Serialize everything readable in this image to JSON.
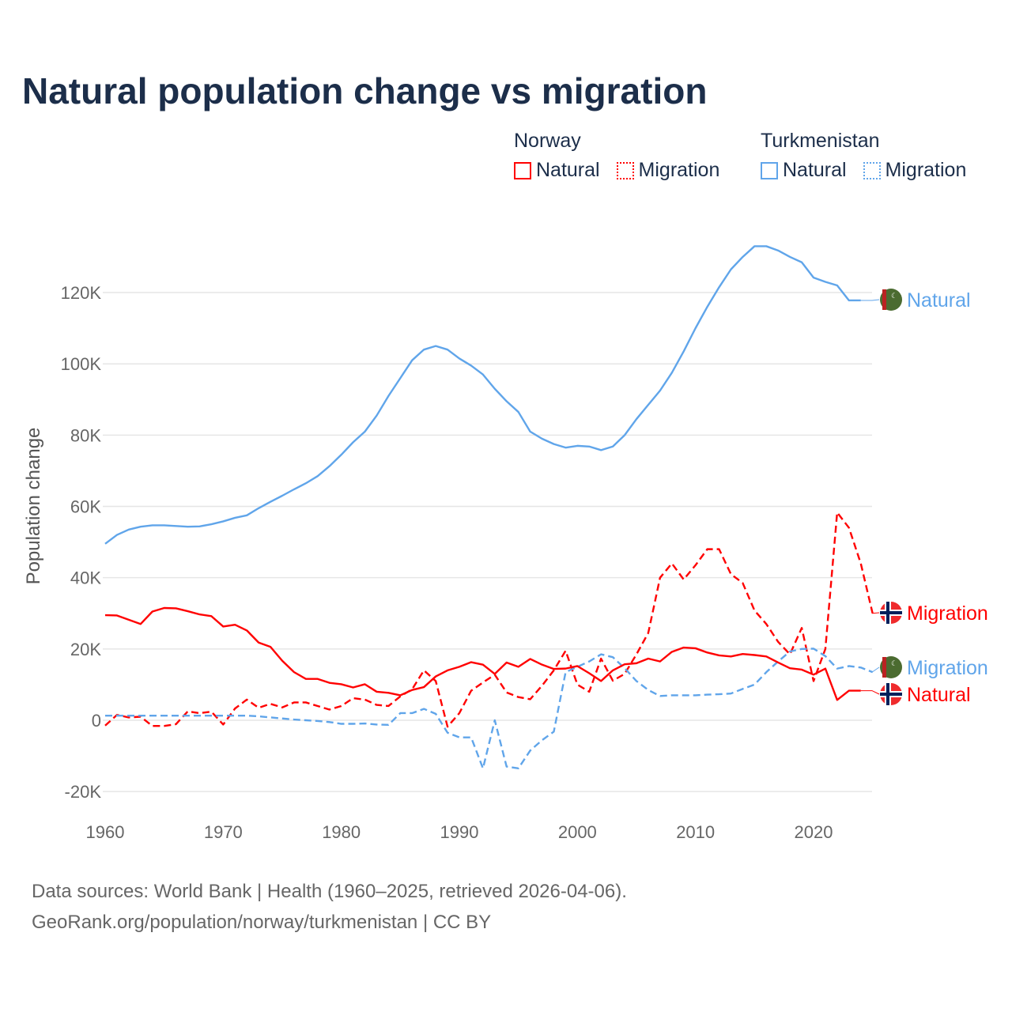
{
  "title": "Natural population change vs migration",
  "legend": {
    "groups": [
      {
        "name": "Norway",
        "items": [
          {
            "label": "Natural",
            "style": "solid"
          },
          {
            "label": "Migration",
            "style": "dashed"
          }
        ],
        "color": "#ff0000"
      },
      {
        "name": "Turkmenistan",
        "items": [
          {
            "label": "Natural",
            "style": "solid"
          },
          {
            "label": "Migration",
            "style": "dashed"
          }
        ],
        "color": "#60a5ea"
      }
    ]
  },
  "source": {
    "line1": "Data sources: World Bank | Health (1960–2025, retrieved 2026-04-06).",
    "line2": "GeoRank.org/population/norway/turkmenistan | CC BY"
  },
  "chart_data": {
    "type": "line",
    "title": "Natural population change vs migration",
    "xlabel": "",
    "ylabel": "Population change",
    "xlim": [
      1960,
      2025
    ],
    "ylim": [
      -20000,
      135000
    ],
    "xticks": [
      1960,
      1970,
      1980,
      1990,
      2000,
      2010,
      2020
    ],
    "xtick_labels": [
      "1960",
      "1970",
      "1980",
      "1990",
      "2000",
      "2010",
      "2020"
    ],
    "yticks": [
      -20000,
      0,
      20000,
      40000,
      60000,
      80000,
      100000,
      120000
    ],
    "ytick_labels": [
      "-20K",
      "0",
      "20K",
      "40K",
      "60K",
      "80K",
      "100K",
      "120K"
    ],
    "grid": true,
    "series": [
      {
        "name": "Turkmenistan Natural",
        "label": "Natural",
        "flag": "turkmenistan",
        "color": "#60a5ea",
        "dash": false,
        "start": 1960,
        "values": [
          49.5,
          52,
          53.5,
          54.3,
          54.7,
          54.7,
          54.5,
          54.3,
          54.4,
          55,
          55.8,
          56.8,
          57.5,
          59.5,
          61.3,
          63,
          64.8,
          66.5,
          68.5,
          71.3,
          74.5,
          78,
          81,
          85.5,
          91,
          96,
          101,
          104,
          105,
          104,
          101.5,
          99.5,
          97,
          93,
          89.5,
          86.5,
          81,
          79,
          77.5,
          76.5,
          77,
          76.8,
          75.8,
          76.8,
          80,
          84.5,
          88.5,
          92.5,
          97.5,
          103.5,
          110,
          116,
          121.5,
          126.5,
          130,
          133,
          133,
          131.8,
          130,
          128.5,
          124.2,
          123,
          122,
          117.8,
          117.8
        ]
      },
      {
        "name": "Norway Migration",
        "label": "Migration",
        "flag": "norway",
        "color": "#ff0000",
        "dash": true,
        "start": 1960,
        "values": [
          -1.5,
          1.5,
          0.8,
          1,
          -1.6,
          -1.6,
          -1.1,
          2.5,
          2,
          2.4,
          -1.2,
          3.3,
          5.8,
          3.5,
          4.6,
          3.6,
          5,
          5,
          4,
          3,
          4,
          6.2,
          5.8,
          4.3,
          4,
          6.7,
          8.7,
          14,
          11,
          -1.8,
          2,
          8.3,
          10.6,
          12.8,
          7.8,
          6.5,
          5.9,
          9.7,
          14,
          19.5,
          10,
          8,
          17.3,
          11.1,
          13,
          18.5,
          24.5,
          40,
          44,
          39.5,
          43.5,
          48,
          48,
          41,
          38.5,
          30.8,
          27,
          22,
          18.5,
          25.9,
          11,
          20,
          58.3,
          54,
          44,
          30
        ]
      },
      {
        "name": "Turkmenistan Migration",
        "label": "Migration",
        "flag": "turkmenistan",
        "color": "#60a5ea",
        "dash": true,
        "start": 1960,
        "values": [
          1.3,
          1.3,
          1.3,
          1.3,
          1.3,
          1.3,
          1.3,
          1.3,
          1.3,
          1.3,
          1.3,
          1.3,
          1.3,
          1.1,
          0.8,
          0.5,
          0.2,
          0,
          -0.2,
          -0.5,
          -1,
          -1,
          -0.9,
          -1.2,
          -1.3,
          2,
          2,
          3.2,
          1.8,
          -3.5,
          -4.8,
          -4.8,
          -13.5,
          0,
          -13,
          -13.5,
          -8.5,
          -5.6,
          -3.2,
          13.5,
          15,
          16.5,
          18.5,
          17.7,
          14.6,
          11,
          8.5,
          6.8,
          7,
          7,
          7,
          7.2,
          7.3,
          7.5,
          8.8,
          10,
          13.5,
          16.5,
          19.3,
          20,
          20.1,
          18,
          14.5,
          15.2,
          14.8,
          13.5
        ]
      },
      {
        "name": "Norway Natural",
        "label": "Natural",
        "flag": "norway",
        "color": "#ff0000",
        "dash": false,
        "start": 1960,
        "values": [
          29.5,
          29.4,
          28.2,
          27,
          30.5,
          31.5,
          31.4,
          30.6,
          29.7,
          29.2,
          26.3,
          26.8,
          25.2,
          21.8,
          20.6,
          16.7,
          13.5,
          11.6,
          11.6,
          10.5,
          10.1,
          9.2,
          10.1,
          8,
          7.7,
          7,
          8.5,
          9.3,
          12.3,
          14,
          15,
          16.3,
          15.6,
          13,
          16.2,
          15,
          17.2,
          15.6,
          14.4,
          14.5,
          15.2,
          13.2,
          11,
          14,
          15.7,
          16,
          17.3,
          16.5,
          19.2,
          20.4,
          20.2,
          19,
          18.2,
          17.9,
          18.6,
          18.3,
          17.9,
          16.2,
          14.6,
          14.2,
          12.8,
          14.5,
          5.7,
          8.3,
          8.3
        ]
      }
    ],
    "value_unit": "thousands"
  }
}
